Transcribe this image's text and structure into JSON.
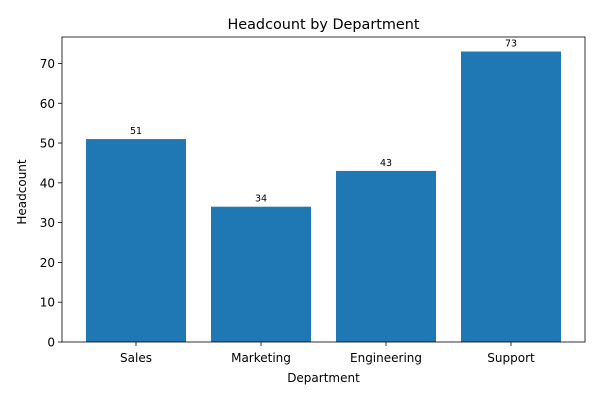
{
  "chart_data": {
    "type": "bar",
    "title": "Headcount by Department",
    "xlabel": "Department",
    "ylabel": "Headcount",
    "categories": [
      "Sales",
      "Marketing",
      "Engineering",
      "Support"
    ],
    "values": [
      51,
      34,
      43,
      73
    ],
    "data_labels": [
      "51",
      "34",
      "43",
      "73"
    ],
    "ylim": [
      0,
      76.65
    ],
    "yticks": [
      0,
      10,
      20,
      30,
      40,
      50,
      60,
      70
    ],
    "grid": false,
    "legend": "none",
    "colors": {
      "bar": "#1f77b4",
      "axis": "#000000",
      "background": "#ffffff"
    }
  }
}
